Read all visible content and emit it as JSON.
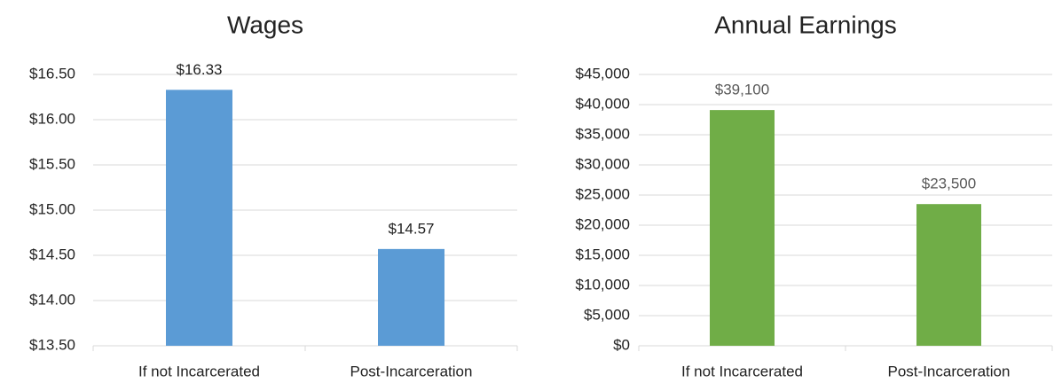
{
  "chart_data": [
    {
      "type": "bar",
      "title": "Wages",
      "categories": [
        "If not Incarcerated",
        "Post-Incarceration"
      ],
      "values": [
        16.33,
        14.57
      ],
      "value_labels": [
        "$16.33",
        "$14.57"
      ],
      "color": "#5b9bd5",
      "ylim": [
        13.5,
        16.5
      ],
      "yticks": [
        {
          "value": 13.5,
          "label": "$13.50"
        },
        {
          "value": 14,
          "label": "$14.00"
        },
        {
          "value": 14.5,
          "label": "$14.50"
        },
        {
          "value": 15,
          "label": "$15.00"
        },
        {
          "value": 15.5,
          "label": "$15.50"
        },
        {
          "value": 16,
          "label": "$16.00"
        },
        {
          "value": 16.5,
          "label": "$16.50"
        }
      ],
      "grid": true
    },
    {
      "type": "bar",
      "title": "Annual Earnings",
      "categories": [
        "If not Incarcerated",
        "Post-Incarceration"
      ],
      "values": [
        39100,
        23500
      ],
      "value_labels": [
        "$39,100",
        "$23,500"
      ],
      "color": "#70ad47",
      "ylim": [
        0,
        45000
      ],
      "yticks": [
        {
          "value": 0,
          "label": "$0"
        },
        {
          "value": 5000,
          "label": "$5,000"
        },
        {
          "value": 10000,
          "label": "$10,000"
        },
        {
          "value": 15000,
          "label": "$15,000"
        },
        {
          "value": 20000,
          "label": "$20,000"
        },
        {
          "value": 25000,
          "label": "$25,000"
        },
        {
          "value": 30000,
          "label": "$30,000"
        },
        {
          "value": 35000,
          "label": "$35,000"
        },
        {
          "value": 40000,
          "label": "$40,000"
        },
        {
          "value": 45000,
          "label": "$45,000"
        }
      ],
      "grid": true
    }
  ]
}
